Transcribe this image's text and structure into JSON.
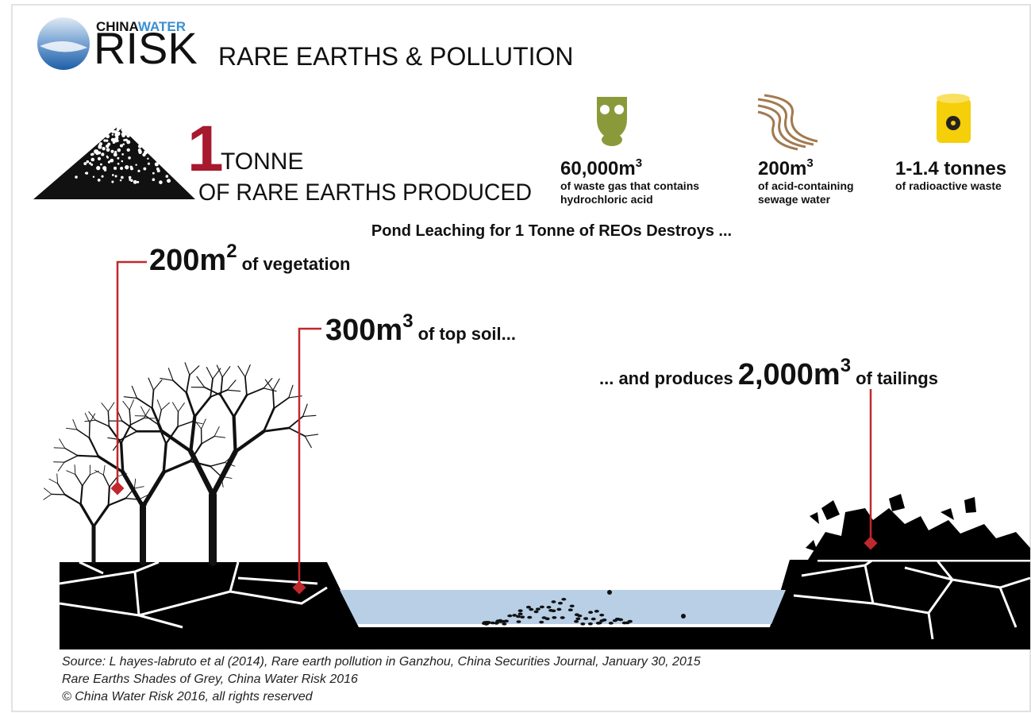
{
  "header": {
    "brand_top": "CHINA",
    "brand_top_accent": "WATER",
    "brand": "RISK",
    "title": "RARE EARTHS & POLLUTION"
  },
  "production": {
    "number": "1",
    "unit": "TONNE",
    "line2": "OF RARE EARTHS PRODUCED"
  },
  "byproducts": [
    {
      "amount": "60,000m",
      "sup": "3",
      "desc": [
        "of waste gas that contains",
        "hydrochloric acid"
      ]
    },
    {
      "amount": "200m",
      "sup": "3",
      "desc": [
        "of acid-containing",
        "sewage water"
      ]
    },
    {
      "amount": "1-1.4 tonnes",
      "desc": [
        "of radioactive waste"
      ]
    }
  ],
  "subtitle": "Pond Leaching for 1 Tonne of REOs Destroys ...",
  "impacts": [
    {
      "amount": "200m",
      "sup": "2",
      "text": "of vegetation"
    },
    {
      "amount": "300m",
      "sup": "3",
      "text": "of top soil..."
    },
    {
      "prefix": "... and produces",
      "amount": "2,000m",
      "sup": "3",
      "text": "of tailings"
    }
  ],
  "source": [
    "Source: L hayes-labruto et al (2014), Rare earth pollution in Ganzhou, China Securities Journal, January 30, 2015",
    "Rare Earths Shades of Grey, China Water Risk 2016",
    "© China Water Risk 2016, all rights reserved"
  ]
}
